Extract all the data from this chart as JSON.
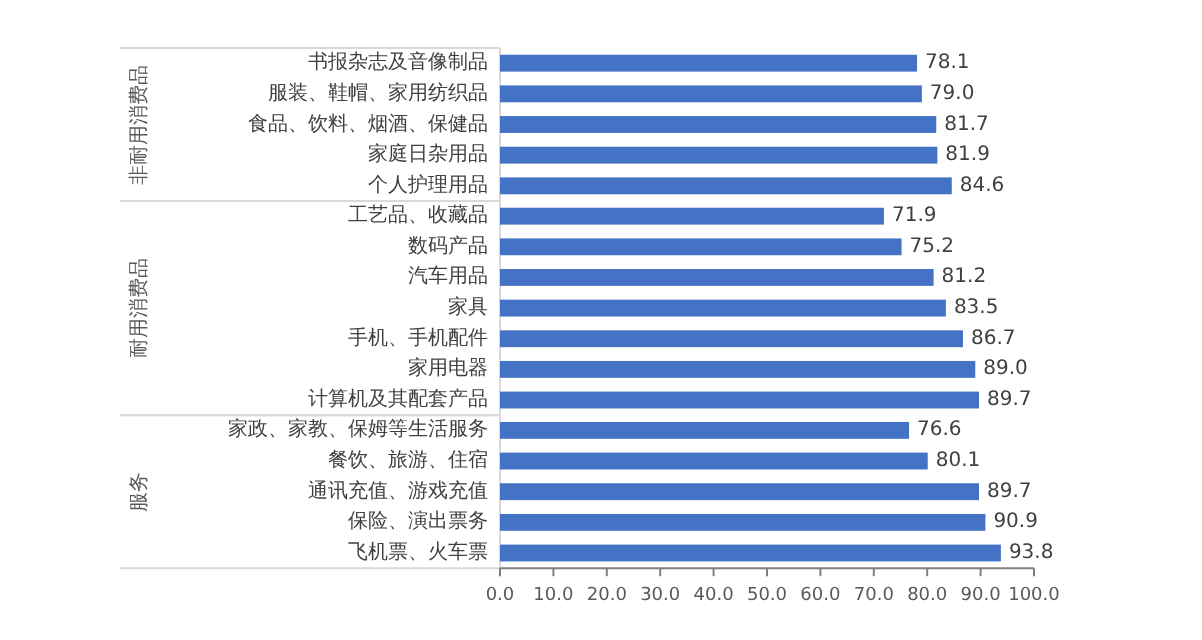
{
  "chart_data": [
    {
      "type": "bar",
      "orientation": "horizontal",
      "ylabel": "非耐用消费品",
      "tick_labels": "y",
      "xlim": [
        0,
        100
      ],
      "color": "#4472c4",
      "categories": [
        "书报杂志及音像制品",
        "服装、鞋帽、家用纺织品",
        "食品、饮料、烟酒、保健品",
        "家庭日杂用品",
        "个人护理用品"
      ],
      "values": [
        78.1,
        79.0,
        81.7,
        81.9,
        84.6
      ],
      "value_labels": [
        "78.1",
        "79.0",
        "81.7",
        "81.9",
        "84.6"
      ]
    },
    {
      "type": "bar",
      "orientation": "horizontal",
      "ylabel": "耐用消费品",
      "tick_labels": "y",
      "xlim": [
        0,
        100
      ],
      "color": "#4472c4",
      "categories": [
        "工艺品、收藏品",
        "数码产品",
        "汽车用品",
        "家具",
        "手机、手机配件",
        "家用电器",
        "计算机及其配套产品"
      ],
      "values": [
        71.9,
        75.2,
        81.2,
        83.5,
        86.7,
        89.0,
        89.7
      ],
      "value_labels": [
        "71.9",
        "75.2",
        "81.2",
        "83.5",
        "86.7",
        "89.0",
        "89.7"
      ]
    },
    {
      "type": "bar",
      "orientation": "horizontal",
      "ylabel": "服务",
      "xlim": [
        0,
        100
      ],
      "color": "#4472c4",
      "categories": [
        "家政、家教、保姆等生活服务",
        "餐饮、旅游、住宿",
        "通讯充值、游戏充值",
        "保险、演出票务",
        "飞机票、火车票"
      ],
      "values": [
        76.6,
        80.1,
        89.7,
        90.9,
        93.8
      ],
      "value_labels": [
        "76.6",
        "80.1",
        "89.7",
        "90.9",
        "93.8"
      ],
      "xticks": [
        {
          "value": 0,
          "label": "0.0"
        },
        {
          "value": 10,
          "label": "10.0"
        },
        {
          "value": 20,
          "label": "20.0"
        },
        {
          "value": 30,
          "label": "30.0"
        },
        {
          "value": 40,
          "label": "40.0"
        },
        {
          "value": 50,
          "label": "50.0"
        },
        {
          "value": 60,
          "label": "60.0"
        },
        {
          "value": 70,
          "label": "70.0"
        },
        {
          "value": 80,
          "label": "80.0"
        },
        {
          "value": 90,
          "label": "90.0"
        },
        {
          "value": 100,
          "label": "100.0"
        }
      ]
    }
  ]
}
